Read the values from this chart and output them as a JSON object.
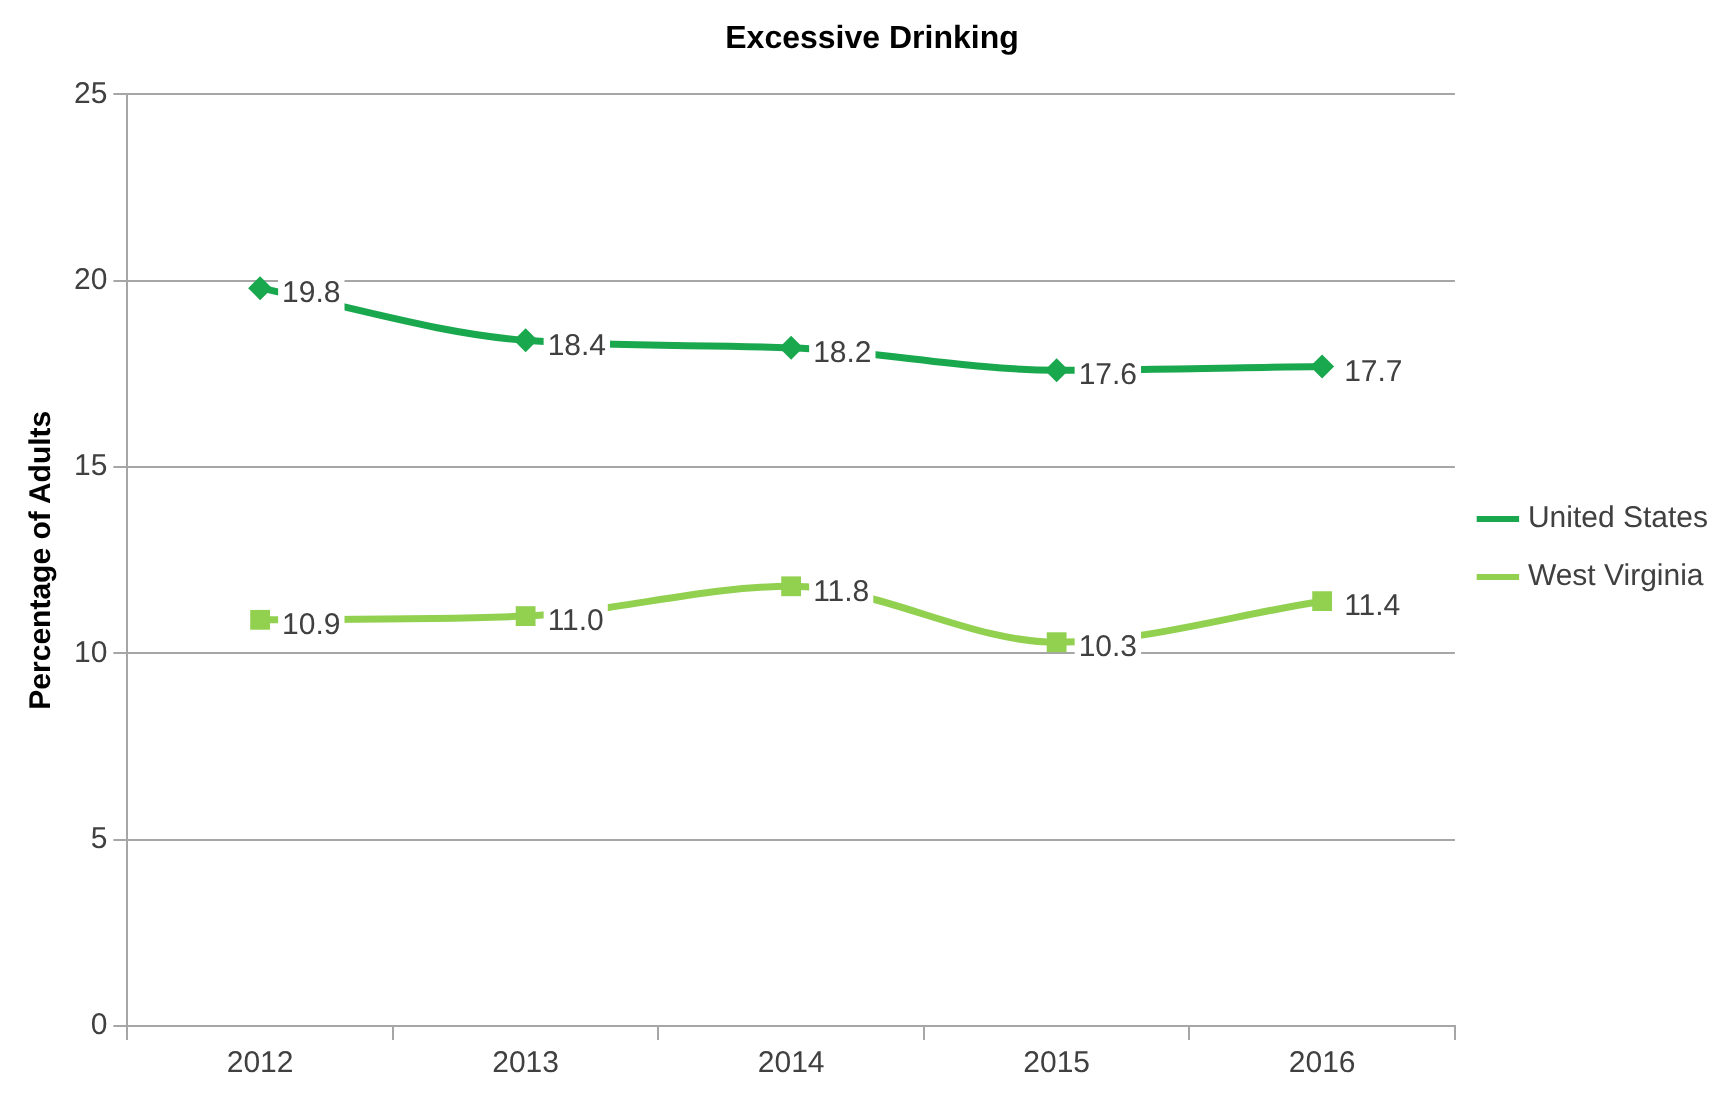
{
  "chart_data": {
    "type": "line",
    "title": "Excessive Drinking",
    "ylabel": "Percentage of Adults",
    "categories": [
      "2012",
      "2013",
      "2014",
      "2015",
      "2016"
    ],
    "series": [
      {
        "name": "United States",
        "color": "#1aa84f",
        "marker": "diamond",
        "values": [
          19.8,
          18.4,
          18.2,
          17.6,
          17.7
        ],
        "value_labels": [
          "19.8",
          "18.4",
          "18.2",
          "17.6",
          "17.7"
        ]
      },
      {
        "name": "West Virginia",
        "color": "#92d050",
        "marker": "square",
        "values": [
          10.9,
          11.0,
          11.8,
          10.3,
          11.4
        ],
        "value_labels": [
          "10.9",
          "11.0",
          "11.8",
          "10.3",
          "11.4"
        ]
      }
    ],
    "ylim": [
      0,
      25
    ],
    "yticks": [
      0,
      5,
      10,
      15,
      20,
      25
    ],
    "grid": "y",
    "legend": "right"
  }
}
